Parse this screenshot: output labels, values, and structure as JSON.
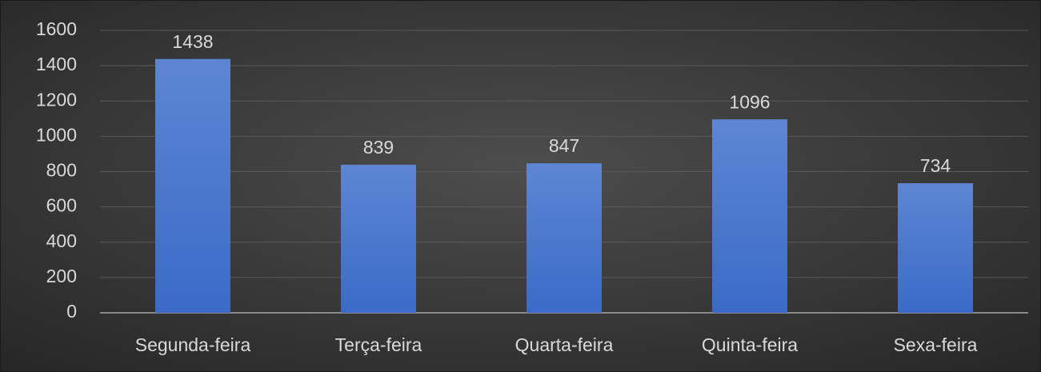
{
  "chart_data": {
    "type": "bar",
    "categories": [
      "Segunda-feira",
      "Terça-feira",
      "Quarta-feira",
      "Quinta-feira",
      "Sexa-feira"
    ],
    "values": [
      1438,
      839,
      847,
      1096,
      734
    ],
    "color": "#3a6bc9",
    "ylim": [
      0,
      1600
    ],
    "yticks": [
      0,
      200,
      400,
      600,
      800,
      1000,
      1200,
      1400,
      1600
    ],
    "grid": true,
    "data_labels": true
  }
}
